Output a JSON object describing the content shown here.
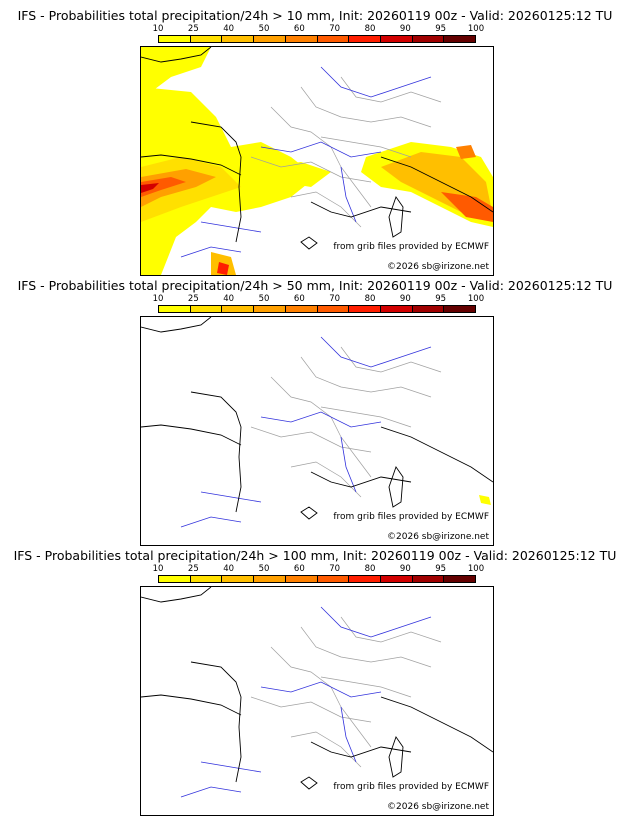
{
  "colorbar": {
    "ticks": [
      "10",
      "25",
      "40",
      "50",
      "60",
      "70",
      "80",
      "90",
      "95",
      "100"
    ],
    "colors": [
      "#ffff00",
      "#ffe000",
      "#ffbf00",
      "#ffa000",
      "#ff8000",
      "#ff5a00",
      "#ff1e00",
      "#d20000",
      "#a00000",
      "#640000"
    ]
  },
  "credit": "from grib files provided by ECMWF",
  "copyright": "©2026 sb@irizone.net",
  "panels": [
    {
      "title": "IFS - Probabilities total precipitation/24h > 10 mm, Init: 20260119 00z - Valid: 20260125:12 TU"
    },
    {
      "title": "IFS - Probabilities total precipitation/24h > 50 mm, Init: 20260119 00z - Valid: 20260125:12 TU"
    },
    {
      "title": "IFS - Probabilities total precipitation/24h > 100 mm, Init: 20260119 00z - Valid: 20260125:12 TU"
    }
  ],
  "colors": {
    "coast": "#000000",
    "rivers": "#3232dc",
    "borders": "#a0a0a0"
  }
}
